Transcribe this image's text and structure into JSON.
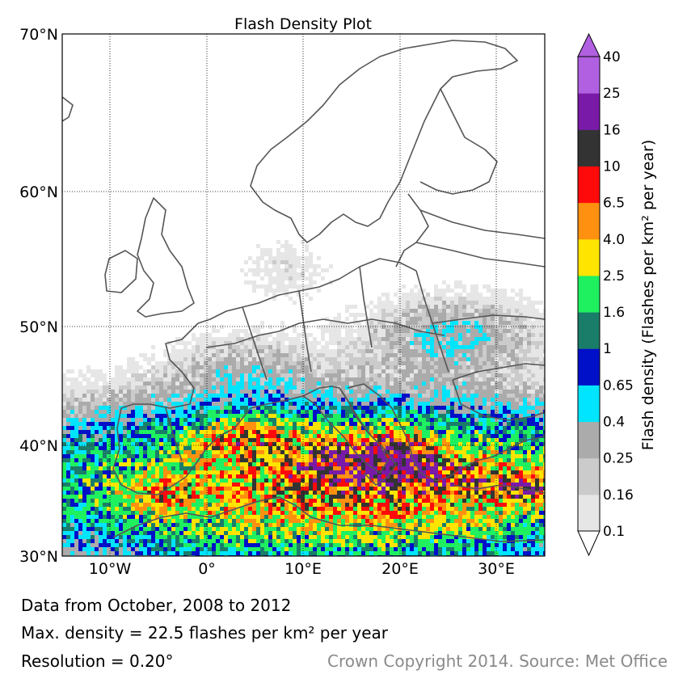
{
  "title": "Flash Density Plot",
  "map": {
    "lon_range": [
      -15,
      35
    ],
    "lat_range": [
      30,
      70
    ],
    "lat_ticks": [
      {
        "value": 70,
        "label": "70°N"
      },
      {
        "value": 60,
        "label": "60°N"
      },
      {
        "value": 50,
        "label": "50°N"
      },
      {
        "value": 40,
        "label": "40°N"
      },
      {
        "value": 30,
        "label": "30°N"
      }
    ],
    "lon_ticks": [
      {
        "value": -10,
        "label": "10°W"
      },
      {
        "value": 0,
        "label": "0°"
      },
      {
        "value": 10,
        "label": "10°E"
      },
      {
        "value": 20,
        "label": "20°E"
      },
      {
        "value": 30,
        "label": "30°E"
      }
    ],
    "grid": "dotted"
  },
  "colorbar": {
    "label": "Flash density (Flashes per km² per year)",
    "levels": [
      "0.1",
      "0.16",
      "0.25",
      "0.4",
      "0.65",
      "1",
      "1.6",
      "2.5",
      "4.0",
      "6.5",
      "10",
      "16",
      "25",
      "40"
    ],
    "colors": [
      "#e6e6e6",
      "#cbcbcb",
      "#ababab",
      "#00e5ff",
      "#0010c8",
      "#1a7d6a",
      "#1ef060",
      "#ffe400",
      "#ff9010",
      "#ff0a0a",
      "#333333",
      "#7a1aa8",
      "#b060e0"
    ],
    "extend": "both"
  },
  "footer": {
    "line1": "Data from October, 2008 to 2012",
    "line2": "Max. density = 22.5 flashes per km² per year",
    "line3": "Resolution = 0.20°",
    "copyright": "Crown Copyright 2014. Source: Met Office"
  }
}
